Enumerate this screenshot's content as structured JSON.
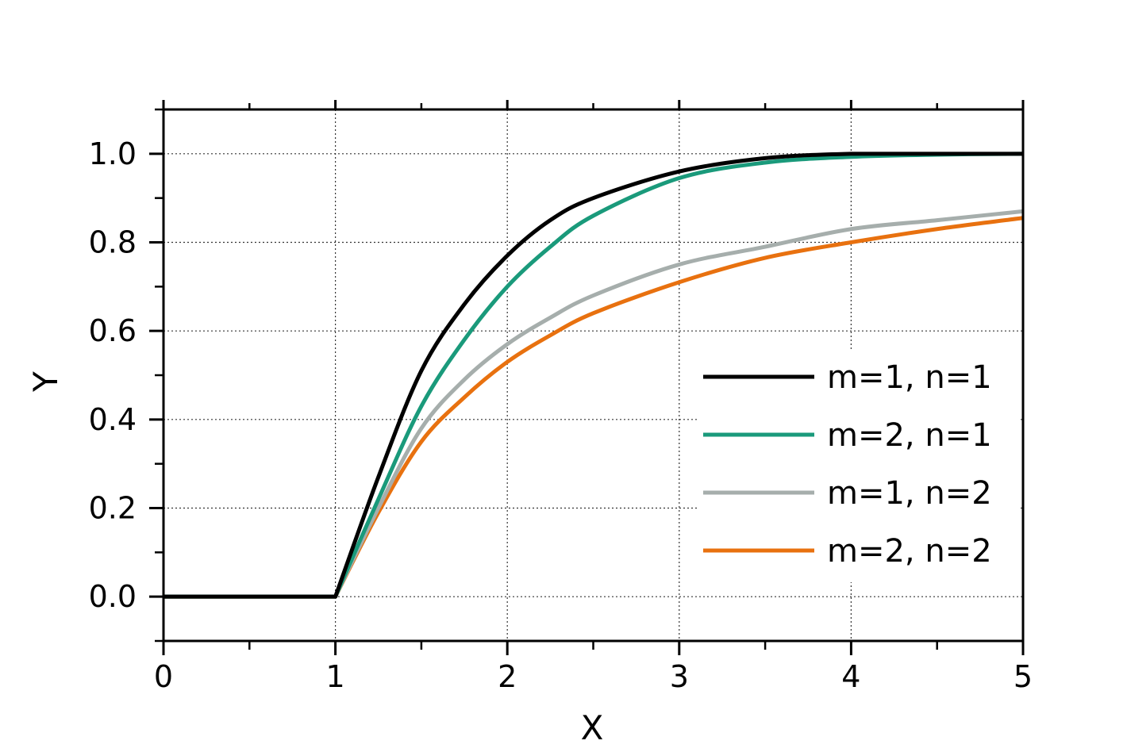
{
  "chart_data": {
    "type": "line",
    "xlabel": "X",
    "ylabel": "Y",
    "xlim": [
      0,
      5
    ],
    "ylim": [
      -0.1,
      1.1
    ],
    "xticks": [
      "0",
      "1",
      "2",
      "3",
      "4",
      "5"
    ],
    "yticks": [
      "0.0",
      "0.2",
      "0.4",
      "0.6",
      "0.8",
      "1.0"
    ],
    "grid": true,
    "legend_position": "right",
    "x": [
      0,
      0.5,
      1,
      1.25,
      1.5,
      1.75,
      2,
      2.25,
      2.5,
      3,
      3.5,
      4,
      4.5,
      5
    ],
    "series": [
      {
        "name": "m=1, n=1",
        "color": "#000000",
        "values": [
          0,
          0,
          0,
          0.27,
          0.51,
          0.66,
          0.77,
          0.85,
          0.9,
          0.96,
          0.99,
          1.0,
          1.0,
          1.0
        ]
      },
      {
        "name": "m=2, n=1",
        "color": "#1a9a7b",
        "values": [
          0,
          0,
          0,
          0.22,
          0.43,
          0.58,
          0.7,
          0.79,
          0.86,
          0.945,
          0.98,
          0.993,
          0.998,
          1.0
        ]
      },
      {
        "name": "m=1, n=2",
        "color": "#a6aeac",
        "values": [
          0,
          0,
          0,
          0.2,
          0.38,
          0.49,
          0.57,
          0.63,
          0.68,
          0.75,
          0.79,
          0.83,
          0.85,
          0.87
        ]
      },
      {
        "name": "m=2, n=2",
        "color": "#e8710f",
        "values": [
          0,
          0,
          0,
          0.19,
          0.35,
          0.45,
          0.53,
          0.59,
          0.64,
          0.71,
          0.765,
          0.8,
          0.83,
          0.855
        ]
      }
    ]
  }
}
